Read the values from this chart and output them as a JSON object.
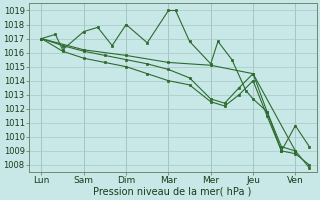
{
  "ylabel": "Pression niveau de la mer( hPa )",
  "xlabels": [
    "Lun",
    "Sam",
    "Dim",
    "Mar",
    "Mer",
    "Jeu",
    "Ven"
  ],
  "ylim": [
    1007.5,
    1019.5
  ],
  "yticks": [
    1008,
    1009,
    1010,
    1011,
    1012,
    1013,
    1014,
    1015,
    1016,
    1017,
    1018,
    1019
  ],
  "line_color": "#2d6a2d",
  "bg_color": "#c8e8e8",
  "grid_color": "#a8c8c8",
  "series": [
    {
      "x": [
        0,
        1,
        2,
        3,
        4,
        5,
        6
      ],
      "y": [
        1017.0,
        1016.2,
        1015.8,
        1015.3,
        1015.1,
        1014.5,
        1009.0
      ]
    },
    {
      "x": [
        0,
        0.33,
        0.5,
        1.0,
        1.33,
        1.67,
        2.0,
        2.5,
        3.0,
        3.17,
        3.5,
        4.0,
        4.17,
        4.5,
        4.83,
        5.0,
        5.33,
        5.67,
        6.0,
        6.33
      ],
      "y": [
        1017.0,
        1017.3,
        1016.2,
        1017.5,
        1017.8,
        1016.5,
        1018.0,
        1016.7,
        1019.0,
        1019.0,
        1016.8,
        1015.2,
        1016.8,
        1015.5,
        1013.3,
        1012.7,
        1011.8,
        1009.0,
        1010.8,
        1009.3
      ]
    },
    {
      "x": [
        0,
        0.5,
        1.0,
        1.5,
        2.0,
        2.5,
        3.0,
        3.5,
        4.0,
        4.33,
        4.67,
        5.0,
        5.33,
        5.67,
        6.0,
        6.33
      ],
      "y": [
        1017.0,
        1016.5,
        1016.1,
        1015.8,
        1015.5,
        1015.2,
        1014.8,
        1014.2,
        1012.7,
        1012.4,
        1013.5,
        1014.5,
        1011.8,
        1009.3,
        1009.0,
        1007.8
      ]
    },
    {
      "x": [
        0,
        0.5,
        1.0,
        1.5,
        2.0,
        2.5,
        3.0,
        3.5,
        4.0,
        4.33,
        4.67,
        5.0,
        5.33,
        5.67,
        6.0,
        6.33
      ],
      "y": [
        1017.0,
        1016.1,
        1015.6,
        1015.3,
        1015.0,
        1014.5,
        1014.0,
        1013.7,
        1012.5,
        1012.2,
        1013.0,
        1014.0,
        1011.5,
        1009.0,
        1008.8,
        1008.0
      ]
    }
  ]
}
